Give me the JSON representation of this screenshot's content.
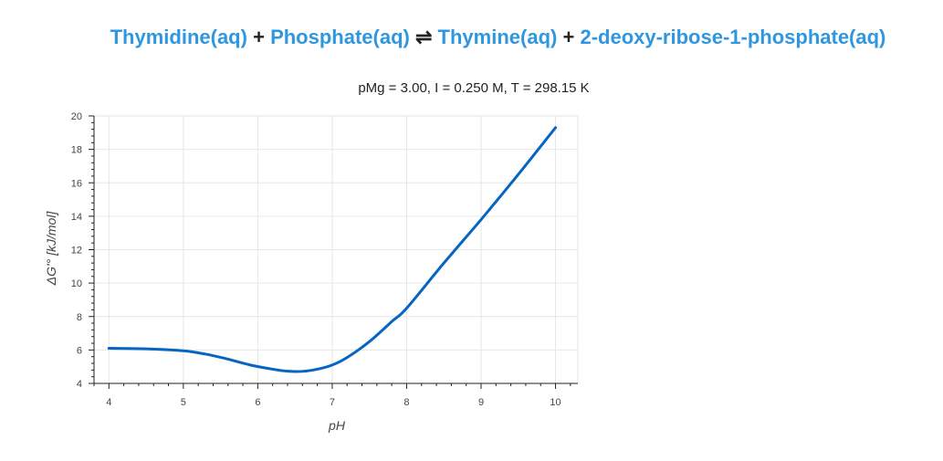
{
  "reaction": {
    "compound_1": "Thymidine(aq)",
    "plus_1": "+",
    "compound_2": "Phosphate(aq)",
    "arrow": "⇌",
    "compound_3": "Thymine(aq)",
    "plus_2": "+",
    "compound_4": "2-deoxy-ribose-1-phosphate(aq)"
  },
  "colors": {
    "compound": "#2f97e0",
    "line": "#0565c0",
    "grid": "#e6e6e6"
  },
  "chart_data": {
    "type": "line",
    "title": "pMg = 3.00, I = 0.250 M, T = 298.15 K",
    "xlabel": "pH",
    "ylabel": "ΔG'° [kJ/mol]",
    "xlim": [
      3.8,
      10.3
    ],
    "ylim": [
      4,
      20
    ],
    "xticks": [
      4,
      5,
      6,
      7,
      8,
      9,
      10
    ],
    "yticks": [
      4,
      6,
      8,
      10,
      12,
      14,
      16,
      18,
      20
    ],
    "grid": true,
    "series": [
      {
        "x": [
          4.0,
          4.5,
          5.0,
          5.3,
          5.6,
          5.9,
          6.2,
          6.4,
          6.6,
          6.8,
          7.0,
          7.2,
          7.5,
          7.8,
          8.0,
          8.5,
          9.0,
          9.5,
          10.0
        ],
        "y": [
          6.1,
          6.07,
          5.95,
          5.75,
          5.45,
          5.1,
          4.85,
          4.73,
          4.72,
          4.85,
          5.1,
          5.55,
          6.5,
          7.7,
          8.5,
          11.2,
          13.8,
          16.5,
          19.3
        ]
      }
    ]
  }
}
